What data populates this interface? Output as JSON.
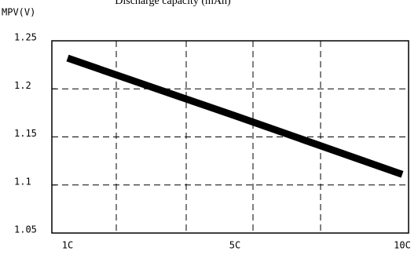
{
  "chart_data": {
    "type": "line",
    "title": "Discharge capacity (mAh)",
    "y_label": "MPV(V)",
    "categories": [
      "1C",
      "5C",
      "10C"
    ],
    "series": [
      {
        "name": "MPV",
        "color": "#000000",
        "values": [
          1.232,
          1.172,
          1.111
        ]
      }
    ],
    "ylim": [
      1.05,
      1.25
    ],
    "yticks": [
      1.05,
      1.1,
      1.15,
      1.2,
      1.25
    ],
    "grid": true
  }
}
